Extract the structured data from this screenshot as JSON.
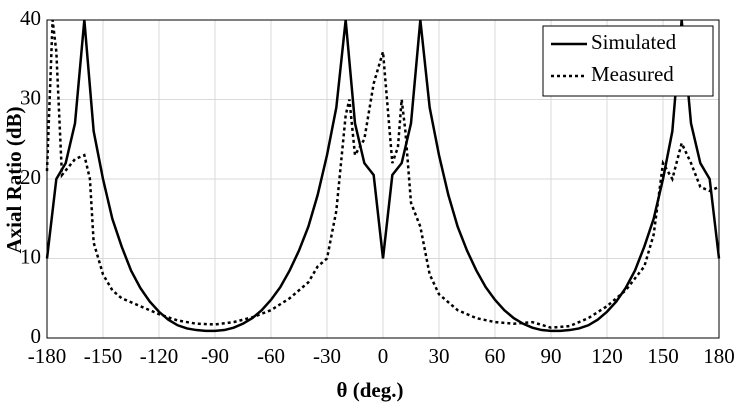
{
  "chart_data": {
    "type": "line",
    "xlabel": "θ (deg.)",
    "ylabel": "Axial Ratio (dB)",
    "xlim": [
      -180,
      180
    ],
    "ylim": [
      0,
      40
    ],
    "xticks": [
      -180,
      -150,
      -120,
      -90,
      -60,
      -30,
      0,
      30,
      60,
      90,
      120,
      150,
      180
    ],
    "yticks": [
      0,
      10,
      20,
      30,
      40
    ],
    "grid": true,
    "legend": "upper-right",
    "series": [
      {
        "name": "Simulated",
        "color": "#000000",
        "dash": "solid",
        "x": [
          -180,
          -175,
          -170,
          -165,
          -160,
          -155,
          -150,
          -145,
          -140,
          -135,
          -130,
          -125,
          -120,
          -115,
          -110,
          -105,
          -100,
          -95,
          -90,
          -85,
          -80,
          -75,
          -70,
          -65,
          -60,
          -55,
          -50,
          -45,
          -40,
          -35,
          -30,
          -25,
          -20,
          -15,
          -10,
          -5,
          0,
          5,
          10,
          15,
          20,
          25,
          30,
          35,
          40,
          45,
          50,
          55,
          60,
          65,
          70,
          75,
          80,
          85,
          90,
          95,
          100,
          105,
          110,
          115,
          120,
          125,
          130,
          135,
          140,
          145,
          150,
          155,
          160,
          165,
          170,
          175,
          180
        ],
        "values": [
          10,
          20,
          22,
          27,
          40,
          26,
          20,
          15,
          11.5,
          8.5,
          6.3,
          4.6,
          3.3,
          2.3,
          1.6,
          1.2,
          1.0,
          0.9,
          0.9,
          1.0,
          1.3,
          1.8,
          2.5,
          3.5,
          4.8,
          6.4,
          8.5,
          11,
          14,
          18,
          23,
          29,
          40,
          27,
          22,
          20.5,
          10,
          20.5,
          22,
          27,
          40,
          29,
          23,
          18,
          14,
          11,
          8.5,
          6.4,
          4.8,
          3.5,
          2.5,
          1.8,
          1.3,
          1.0,
          0.9,
          0.9,
          1.0,
          1.2,
          1.6,
          2.3,
          3.3,
          4.6,
          6.3,
          8.5,
          11.5,
          15,
          20,
          26,
          40,
          27,
          22,
          20,
          10
        ]
      },
      {
        "name": "Measured",
        "color": "#000000",
        "dash": "dotted",
        "x": [
          -180,
          -177,
          -175,
          -172,
          -165,
          -160,
          -157,
          -155,
          -150,
          -145,
          -140,
          -130,
          -120,
          -110,
          -100,
          -90,
          -80,
          -70,
          -60,
          -50,
          -40,
          -35,
          -30,
          -25,
          -20,
          -18,
          -15,
          -10,
          -5,
          0,
          5,
          8,
          10,
          12,
          15,
          20,
          25,
          30,
          40,
          50,
          60,
          70,
          80,
          90,
          100,
          110,
          120,
          130,
          140,
          145,
          150,
          155,
          160,
          165,
          170,
          175,
          180
        ],
        "values": [
          21,
          40,
          36,
          20.5,
          22.5,
          23,
          20,
          12,
          8,
          6,
          5,
          4,
          3,
          2.2,
          1.8,
          1.7,
          2,
          2.6,
          3.5,
          5,
          7,
          9,
          10,
          16,
          28,
          30,
          23,
          25,
          32,
          36,
          22,
          24,
          30,
          26,
          17,
          14,
          8,
          5.5,
          3.5,
          2.5,
          2,
          1.8,
          2,
          1.3,
          1.5,
          2.5,
          4,
          6,
          9,
          13,
          22,
          20,
          24.5,
          22,
          19,
          18.5,
          19
        ]
      }
    ]
  }
}
